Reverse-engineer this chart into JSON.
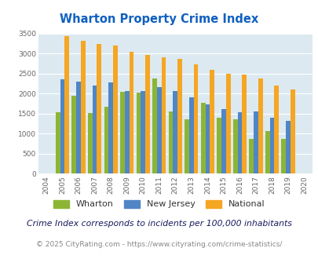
{
  "title": "Wharton Property Crime Index",
  "years": [
    2004,
    2005,
    2006,
    2007,
    2008,
    2009,
    2010,
    2011,
    2012,
    2013,
    2014,
    2015,
    2016,
    2017,
    2018,
    2019,
    2020
  ],
  "wharton": [
    0,
    1530,
    1950,
    1520,
    1670,
    2050,
    2020,
    2380,
    1550,
    1350,
    1760,
    1400,
    1350,
    860,
    1060,
    870,
    0
  ],
  "new_jersey": [
    0,
    2360,
    2300,
    2210,
    2290,
    2060,
    2070,
    2170,
    2060,
    1910,
    1730,
    1620,
    1540,
    1560,
    1400,
    1320,
    0
  ],
  "national": [
    0,
    3430,
    3330,
    3250,
    3210,
    3040,
    2960,
    2900,
    2860,
    2730,
    2600,
    2500,
    2470,
    2370,
    2210,
    2110,
    0
  ],
  "wharton_color": "#8db535",
  "nj_color": "#4f86c6",
  "national_color": "#f5a623",
  "bg_color": "#dce9f0",
  "title_color": "#1060c0",
  "subtitle": "Crime Index corresponds to incidents per 100,000 inhabitants",
  "footer": "© 2025 CityRating.com - https://www.cityrating.com/crime-statistics/",
  "ylim": [
    0,
    3500
  ],
  "yticks": [
    0,
    500,
    1000,
    1500,
    2000,
    2500,
    3000,
    3500
  ]
}
